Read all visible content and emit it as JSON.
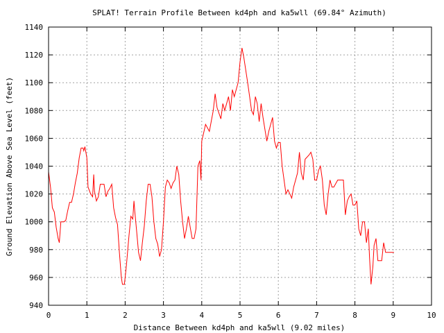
{
  "chart_data": {
    "type": "line",
    "title": "SPLAT! Terrain Profile Between kd4ph and ka5wll (69.84° Azimuth)",
    "xlabel": "Distance Between kd4ph and ka5wll (9.02 miles)",
    "ylabel": "Ground Elevation Above Sea Level (feet)",
    "xlim": [
      0,
      10
    ],
    "ylim": [
      940,
      1140
    ],
    "xticks": [
      0,
      1,
      2,
      3,
      4,
      5,
      6,
      7,
      8,
      9,
      10
    ],
    "yticks": [
      940,
      960,
      980,
      1000,
      1020,
      1040,
      1060,
      1080,
      1100,
      1120,
      1140
    ],
    "grid": true,
    "series_color": "#ff0000",
    "series": [
      {
        "name": "terrain",
        "x": [
          0,
          0.05,
          0.1,
          0.15,
          0.2,
          0.25,
          0.28,
          0.32,
          0.4,
          0.45,
          0.5,
          0.55,
          0.6,
          0.65,
          0.7,
          0.75,
          0.8,
          0.85,
          0.9,
          0.92,
          0.95,
          1.0,
          1.03,
          1.1,
          1.15,
          1.18,
          1.2,
          1.25,
          1.3,
          1.35,
          1.45,
          1.5,
          1.55,
          1.6,
          1.65,
          1.7,
          1.75,
          1.8,
          1.85,
          1.9,
          1.93,
          1.98,
          2.03,
          2.1,
          2.15,
          2.2,
          2.23,
          2.25,
          2.3,
          2.35,
          2.4,
          2.45,
          2.5,
          2.55,
          2.6,
          2.65,
          2.7,
          2.75,
          2.8,
          2.85,
          2.9,
          2.95,
          3.0,
          3.05,
          3.1,
          3.15,
          3.2,
          3.25,
          3.3,
          3.35,
          3.4,
          3.45,
          3.5,
          3.55,
          3.6,
          3.65,
          3.7,
          3.75,
          3.8,
          3.85,
          3.9,
          3.95,
          3.98,
          4.0,
          4.05,
          4.1,
          4.2,
          4.3,
          4.35,
          4.4,
          4.5,
          4.55,
          4.6,
          4.7,
          4.75,
          4.8,
          4.85,
          4.95,
          5.0,
          5.05,
          5.1,
          5.2,
          5.3,
          5.35,
          5.4,
          5.45,
          5.5,
          5.55,
          5.6,
          5.7,
          5.75,
          5.8,
          5.85,
          5.9,
          5.95,
          6.0,
          6.05,
          6.1,
          6.2,
          6.25,
          6.3,
          6.35,
          6.4,
          6.5,
          6.55,
          6.6,
          6.65,
          6.7,
          6.8,
          6.85,
          6.9,
          6.95,
          7.0,
          7.05,
          7.1,
          7.15,
          7.2,
          7.25,
          7.3,
          7.35,
          7.4,
          7.45,
          7.55,
          7.7,
          7.75,
          7.8,
          7.85,
          7.9,
          7.95,
          8.0,
          8.05,
          8.1,
          8.15,
          8.2,
          8.25,
          8.3,
          8.35,
          8.38,
          8.42,
          8.47,
          8.5,
          8.55,
          8.6,
          8.7,
          8.75,
          8.8,
          8.9,
          9.02
        ],
        "y": [
          1036,
          1025,
          1010,
          1007,
          996,
          988,
          985,
          1000,
          1000,
          1001,
          1008,
          1014,
          1014,
          1020,
          1028,
          1035,
          1046,
          1053,
          1053,
          1051,
          1054,
          1046,
          1025,
          1020,
          1018,
          1034,
          1022,
          1015,
          1018,
          1027,
          1027,
          1018,
          1022,
          1024,
          1027,
          1010,
          1003,
          998,
          978,
          960,
          955,
          955,
          968,
          990,
          1004,
          1002,
          1015,
          1008,
          993,
          978,
          972,
          985,
          997,
          1015,
          1027,
          1027,
          1018,
          1000,
          988,
          984,
          975,
          980,
          1000,
          1025,
          1030,
          1028,
          1024,
          1028,
          1030,
          1040,
          1034,
          1015,
          1000,
          988,
          995,
          1004,
          996,
          988,
          988,
          995,
          1040,
          1044,
          1030,
          1058,
          1064,
          1070,
          1065,
          1080,
          1092,
          1082,
          1074,
          1085,
          1080,
          1090,
          1080,
          1095,
          1090,
          1100,
          1115,
          1125,
          1118,
          1100,
          1080,
          1077,
          1090,
          1085,
          1072,
          1085,
          1075,
          1058,
          1065,
          1070,
          1075,
          1058,
          1053,
          1057,
          1057,
          1040,
          1020,
          1023,
          1020,
          1017,
          1025,
          1035,
          1050,
          1035,
          1030,
          1045,
          1048,
          1050,
          1045,
          1030,
          1030,
          1037,
          1040,
          1030,
          1012,
          1005,
          1020,
          1030,
          1025,
          1025,
          1030,
          1030,
          1005,
          1015,
          1018,
          1020,
          1012,
          1012,
          1015,
          995,
          990,
          1000,
          1000,
          985,
          995,
          975,
          955,
          968,
          983,
          988,
          972,
          972,
          985,
          978,
          978,
          978
        ]
      }
    ]
  }
}
